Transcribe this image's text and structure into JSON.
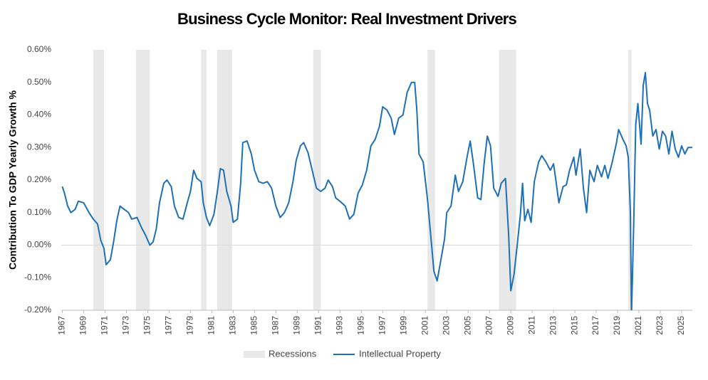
{
  "chart_data": {
    "type": "line",
    "title": "Business Cycle Monitor: Real Investment Drivers",
    "ylabel": "Contribution To GDP Yearly Growth %",
    "x": [
      1967.0,
      1967.2,
      1967.5,
      1967.8,
      1968.2,
      1968.5,
      1969.0,
      1969.5,
      1969.9,
      1970.3,
      1970.6,
      1970.9,
      1971.1,
      1971.5,
      1971.8,
      1972.1,
      1972.4,
      1972.8,
      1973.2,
      1973.5,
      1974.0,
      1974.4,
      1974.8,
      1975.2,
      1975.5,
      1975.8,
      1976.1,
      1976.5,
      1976.8,
      1977.2,
      1977.5,
      1977.9,
      1978.3,
      1978.7,
      1979.0,
      1979.3,
      1979.6,
      1980.0,
      1980.2,
      1980.5,
      1980.8,
      1981.2,
      1981.5,
      1981.8,
      1982.1,
      1982.4,
      1982.8,
      1983.0,
      1983.4,
      1983.7,
      1983.9,
      1984.3,
      1984.7,
      1985.0,
      1985.4,
      1985.8,
      1986.2,
      1986.6,
      1987.0,
      1987.4,
      1987.8,
      1988.2,
      1988.6,
      1988.9,
      1989.3,
      1989.6,
      1990.0,
      1990.4,
      1990.8,
      1991.2,
      1991.6,
      1991.9,
      1992.3,
      1992.6,
      1993.0,
      1993.5,
      1993.9,
      1994.3,
      1994.7,
      1995.1,
      1995.5,
      1995.9,
      1996.3,
      1996.7,
      1997.0,
      1997.4,
      1997.8,
      1998.1,
      1998.5,
      1998.9,
      1999.3,
      1999.7,
      2000.0,
      2000.2,
      2000.4,
      2000.8,
      2001.2,
      2001.5,
      2001.8,
      2002.1,
      2002.4,
      2002.8,
      2003.0,
      2003.4,
      2003.8,
      2004.1,
      2004.5,
      2004.9,
      2005.2,
      2005.5,
      2005.9,
      2006.2,
      2006.5,
      2006.8,
      2007.1,
      2007.4,
      2007.8,
      2008.1,
      2008.5,
      2008.8,
      2009.0,
      2009.3,
      2009.6,
      2009.9,
      2010.1,
      2010.3,
      2010.6,
      2010.9,
      2011.2,
      2011.6,
      2011.9,
      2012.3,
      2012.7,
      2013.0,
      2013.2,
      2013.5,
      2013.9,
      2014.2,
      2014.5,
      2014.9,
      2015.1,
      2015.5,
      2015.8,
      2016.1,
      2016.4,
      2016.8,
      2017.1,
      2017.5,
      2017.8,
      2018.1,
      2018.5,
      2018.9,
      2019.1,
      2019.5,
      2019.8,
      2020.0,
      2020.2,
      2020.3,
      2020.5,
      2020.7,
      2020.9,
      2021.2,
      2021.4,
      2021.6,
      2021.8,
      2022.0,
      2022.3,
      2022.6,
      2022.9,
      2023.2,
      2023.5,
      2023.8,
      2024.1,
      2024.4,
      2024.7,
      2025.0,
      2025.3,
      2025.6,
      2026.0
    ],
    "series": [
      {
        "name": "Intellectual Property",
        "color": "#1f6fb5",
        "values": [
          0.18,
          0.16,
          0.12,
          0.1,
          0.11,
          0.135,
          0.13,
          0.1,
          0.08,
          0.065,
          0.015,
          -0.01,
          -0.06,
          -0.045,
          0.01,
          0.075,
          0.12,
          0.11,
          0.1,
          0.08,
          0.085,
          0.055,
          0.03,
          0.0,
          0.01,
          0.05,
          0.13,
          0.19,
          0.2,
          0.18,
          0.12,
          0.085,
          0.08,
          0.13,
          0.165,
          0.23,
          0.205,
          0.195,
          0.13,
          0.085,
          0.06,
          0.095,
          0.16,
          0.235,
          0.23,
          0.165,
          0.12,
          0.07,
          0.08,
          0.19,
          0.315,
          0.32,
          0.28,
          0.23,
          0.195,
          0.19,
          0.195,
          0.175,
          0.12,
          0.085,
          0.1,
          0.13,
          0.195,
          0.26,
          0.305,
          0.315,
          0.285,
          0.23,
          0.175,
          0.165,
          0.175,
          0.2,
          0.18,
          0.145,
          0.135,
          0.12,
          0.08,
          0.095,
          0.16,
          0.185,
          0.23,
          0.305,
          0.325,
          0.365,
          0.425,
          0.415,
          0.39,
          0.34,
          0.39,
          0.4,
          0.47,
          0.5,
          0.5,
          0.415,
          0.28,
          0.255,
          0.14,
          0.03,
          -0.08,
          -0.11,
          -0.055,
          0.02,
          0.1,
          0.12,
          0.215,
          0.165,
          0.195,
          0.27,
          0.32,
          0.25,
          0.145,
          0.14,
          0.25,
          0.335,
          0.305,
          0.175,
          0.15,
          0.19,
          0.205,
          0.03,
          -0.14,
          -0.09,
          0.0,
          0.095,
          0.19,
          0.075,
          0.11,
          0.07,
          0.195,
          0.255,
          0.275,
          0.255,
          0.23,
          0.25,
          0.205,
          0.13,
          0.18,
          0.185,
          0.23,
          0.27,
          0.215,
          0.295,
          0.175,
          0.1,
          0.23,
          0.195,
          0.245,
          0.21,
          0.245,
          0.205,
          0.255,
          0.315,
          0.355,
          0.325,
          0.305,
          0.27,
          0.1,
          -0.22,
          0.05,
          0.37,
          0.435,
          0.31,
          0.49,
          0.53,
          0.435,
          0.415,
          0.335,
          0.355,
          0.295,
          0.35,
          0.335,
          0.28,
          0.35,
          0.295,
          0.27,
          0.305,
          0.28,
          0.3,
          0.3
        ]
      }
    ],
    "recessions": {
      "name": "Recessions",
      "color": "#e8e8e8",
      "periods": [
        [
          1969.9,
          1970.9
        ],
        [
          1973.9,
          1975.2
        ],
        [
          1980.0,
          1980.5
        ],
        [
          1981.5,
          1982.9
        ],
        [
          1990.5,
          1991.2
        ],
        [
          2001.2,
          2001.9
        ],
        [
          2007.9,
          2009.5
        ],
        [
          2020.0,
          2020.3
        ]
      ]
    },
    "xlim": [
      1966.9,
      2026.0
    ],
    "xticks": [
      1967,
      1969,
      1971,
      1973,
      1975,
      1977,
      1979,
      1981,
      1983,
      1985,
      1987,
      1989,
      1991,
      1993,
      1995,
      1997,
      1999,
      2001,
      2003,
      2005,
      2007,
      2009,
      2011,
      2013,
      2015,
      2017,
      2019,
      2021,
      2023,
      2025
    ],
    "ylim": [
      -0.2,
      0.6
    ],
    "yticks": [
      {
        "value": -0.2,
        "label": "-0.20%"
      },
      {
        "value": -0.1,
        "label": "-0.10%"
      },
      {
        "value": 0,
        "label": "0.00%"
      },
      {
        "value": 0.1,
        "label": "0.10%"
      },
      {
        "value": 0.2,
        "label": "0.20%"
      },
      {
        "value": 0.3,
        "label": "0.30%"
      },
      {
        "value": 0.4,
        "label": "0.40%"
      },
      {
        "value": 0.5,
        "label": "0.50%"
      },
      {
        "value": 0.6,
        "label": "0.60%"
      }
    ]
  }
}
